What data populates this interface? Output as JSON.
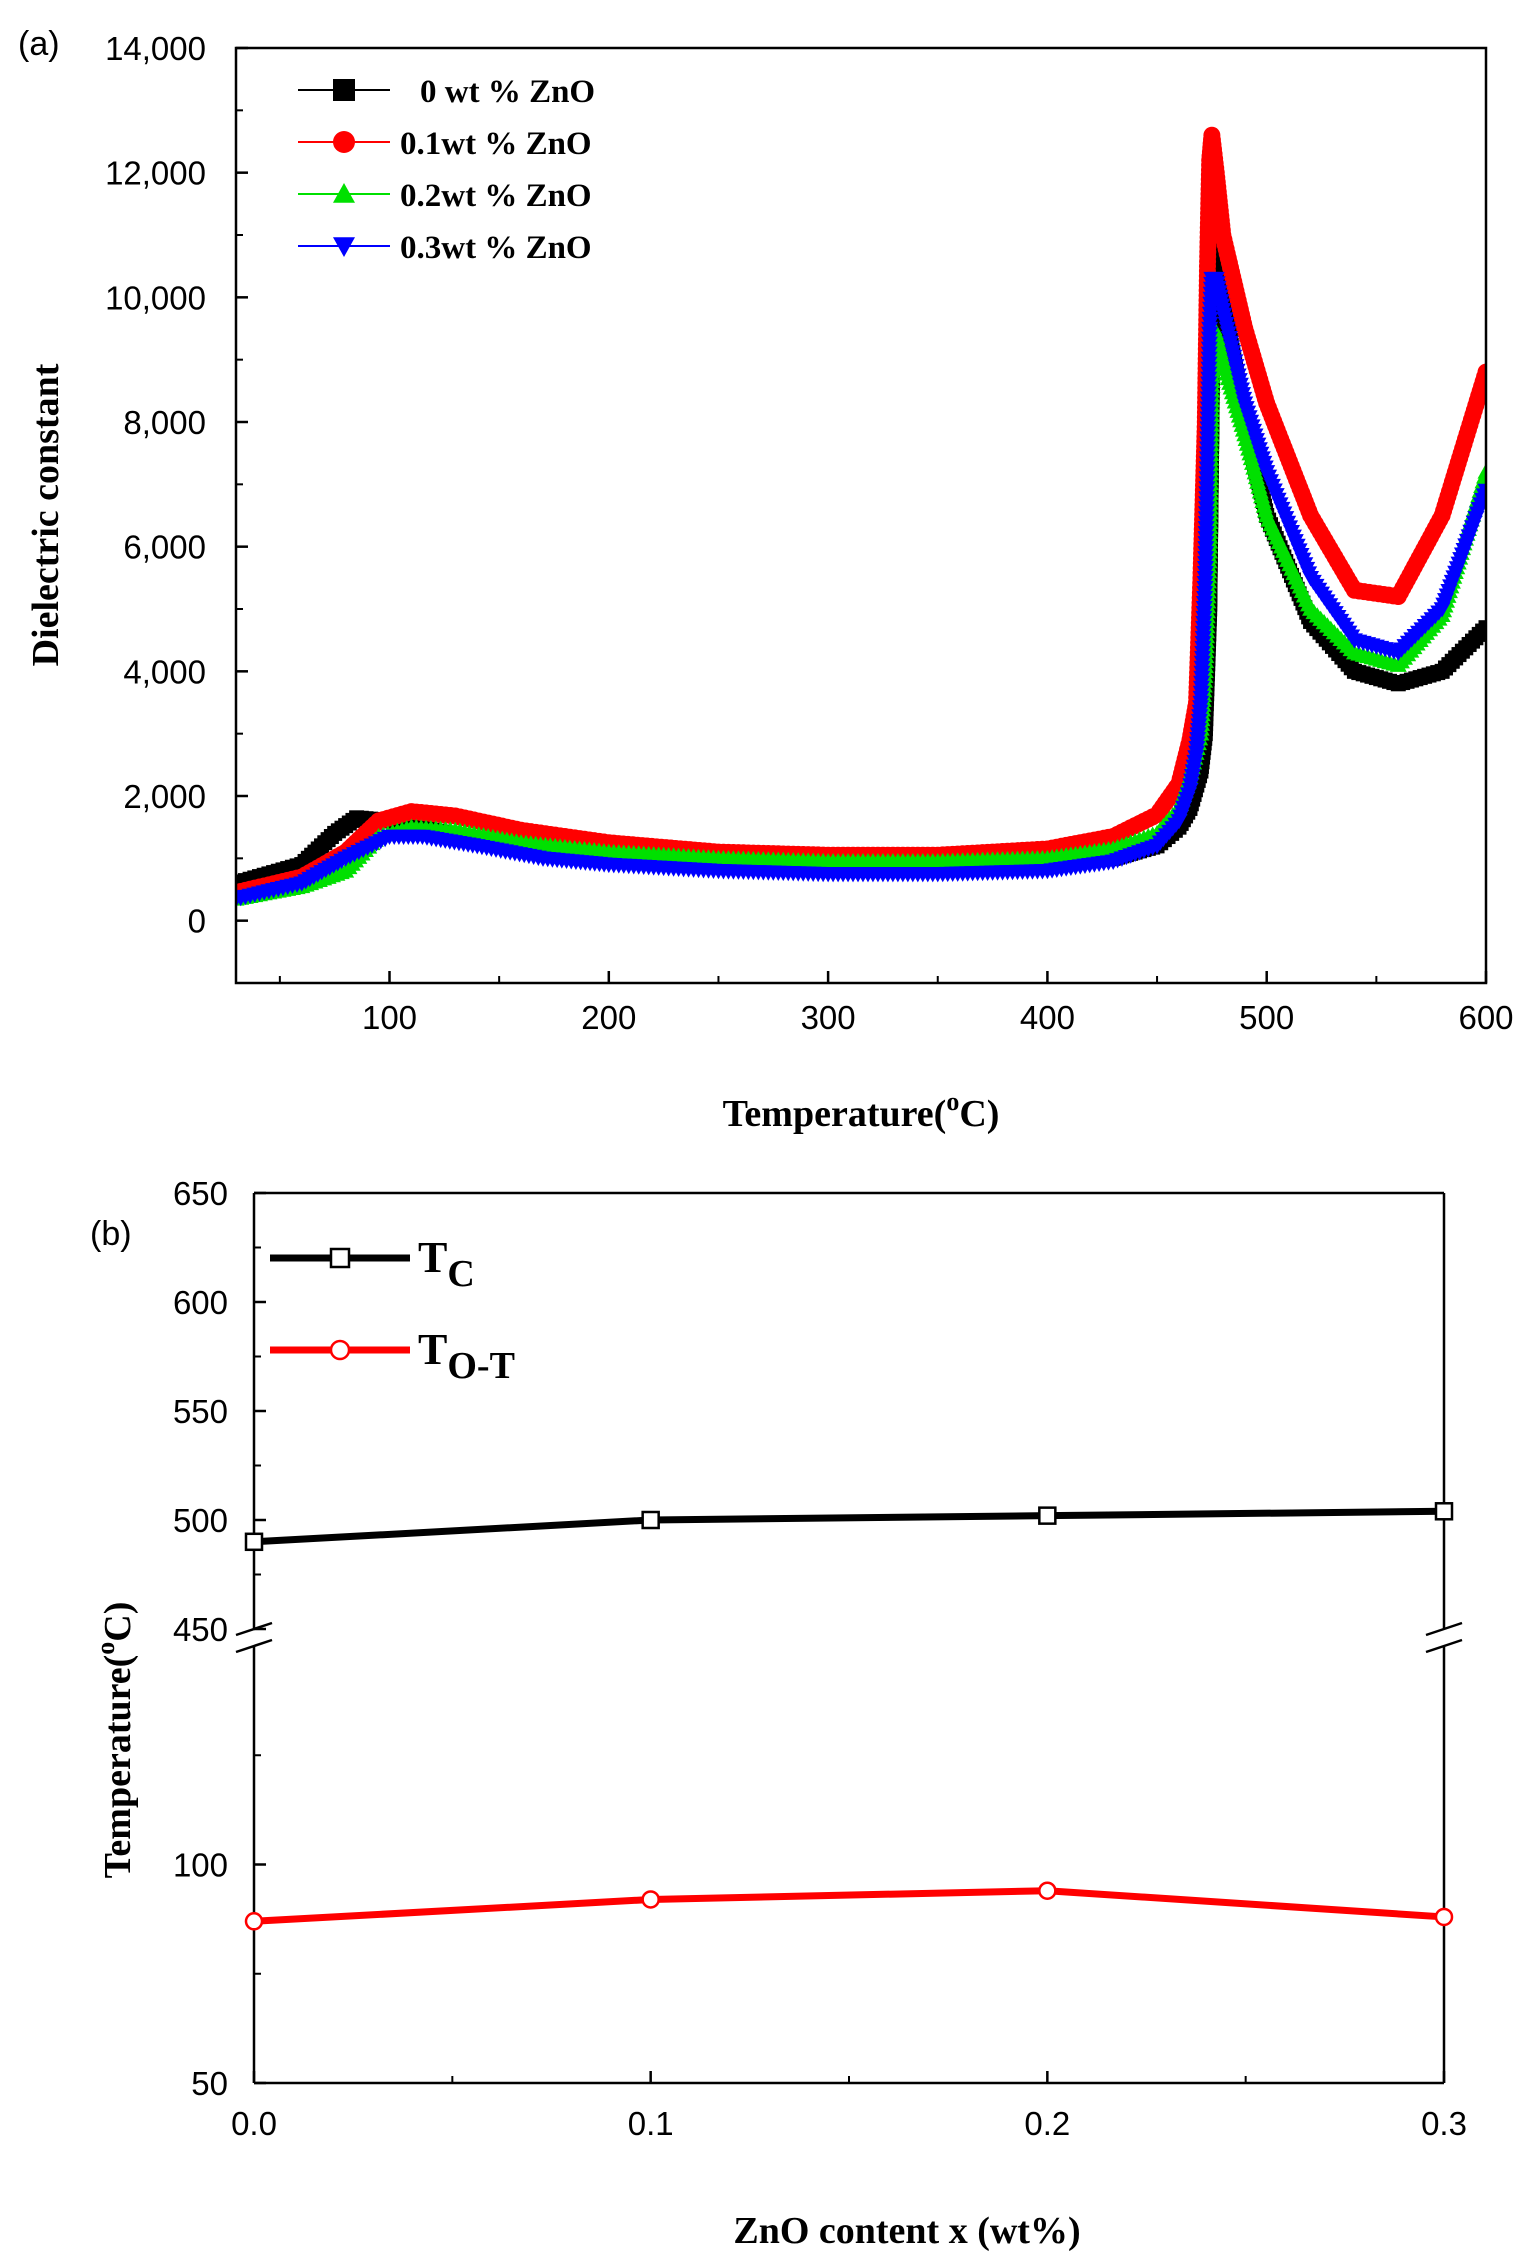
{
  "chart_data": [
    {
      "panel_label": "(a)",
      "type": "scatter",
      "xlabel": "Temperature(",
      "xlabel_sup": "o",
      "xlabel_tail": "C)",
      "ylabel": "Dielectric constant",
      "xlim": [
        30,
        600
      ],
      "ylim": [
        -1000,
        14000
      ],
      "xticks": [
        100,
        200,
        300,
        400,
        500,
        600
      ],
      "xtick_labels": [
        "100",
        "200",
        "300",
        "400",
        "500",
        "600"
      ],
      "yticks": [
        0,
        2000,
        4000,
        6000,
        8000,
        10000,
        12000,
        14000
      ],
      "ytick_labels": [
        "0",
        "2,000",
        "4,000",
        "6,000",
        "8,000",
        "10,000",
        "12,000",
        "14,000"
      ],
      "legend_position": "top-left",
      "series": [
        {
          "name": "0 wt % ZnO",
          "color": "#000000",
          "marker": "square",
          "x": [
            30,
            60,
            75,
            85,
            100,
            120,
            150,
            200,
            250,
            300,
            350,
            400,
            430,
            450,
            460,
            465,
            470,
            472,
            474,
            475,
            476,
            478,
            480,
            490,
            500,
            520,
            540,
            560,
            580,
            600
          ],
          "y": [
            600,
            900,
            1400,
            1650,
            1600,
            1450,
            1250,
            1050,
            950,
            900,
            900,
            920,
            1000,
            1200,
            1500,
            1800,
            2400,
            3000,
            5000,
            8000,
            11500,
            11000,
            10000,
            8000,
            6500,
            4800,
            4000,
            3800,
            4000,
            4700
          ]
        },
        {
          "name": "0.1wt % ZnO",
          "color": "#ff0000",
          "marker": "circle",
          "x": [
            30,
            60,
            80,
            95,
            110,
            130,
            160,
            200,
            250,
            300,
            350,
            400,
            430,
            450,
            460,
            465,
            468,
            470,
            472,
            473,
            474,
            475,
            477,
            480,
            490,
            500,
            520,
            540,
            560,
            580,
            600
          ],
          "y": [
            450,
            700,
            1100,
            1600,
            1750,
            1680,
            1450,
            1250,
            1100,
            1050,
            1050,
            1150,
            1350,
            1700,
            2200,
            2900,
            3500,
            5500,
            8000,
            10500,
            12200,
            12600,
            12000,
            11000,
            9500,
            8300,
            6500,
            5300,
            5200,
            6500,
            8800
          ]
        },
        {
          "name": "0.2wt % ZnO",
          "color": "#00e000",
          "marker": "triangle-up",
          "x": [
            30,
            60,
            80,
            95,
            110,
            130,
            160,
            200,
            250,
            300,
            350,
            400,
            430,
            450,
            460,
            465,
            470,
            472,
            474,
            475,
            476,
            478,
            480,
            490,
            500,
            520,
            540,
            560,
            580,
            600
          ],
          "y": [
            350,
            550,
            800,
            1350,
            1500,
            1450,
            1250,
            1100,
            1000,
            950,
            950,
            1000,
            1150,
            1400,
            1800,
            2300,
            3000,
            4000,
            6000,
            8500,
            9500,
            9300,
            9000,
            7800,
            6500,
            5000,
            4300,
            4100,
            4900,
            7200
          ]
        },
        {
          "name": "0.3wt % ZnO",
          "color": "#0000ff",
          "marker": "triangle-down",
          "x": [
            30,
            60,
            80,
            100,
            115,
            140,
            170,
            200,
            250,
            300,
            350,
            400,
            430,
            450,
            460,
            465,
            468,
            470,
            472,
            473,
            474,
            475,
            477,
            480,
            490,
            500,
            520,
            540,
            560,
            580,
            600
          ],
          "y": [
            350,
            600,
            1000,
            1350,
            1350,
            1200,
            1000,
            900,
            800,
            750,
            750,
            800,
            950,
            1200,
            1600,
            2100,
            2700,
            3500,
            5500,
            7500,
            9500,
            10300,
            10300,
            9800,
            8300,
            7200,
            5500,
            4500,
            4300,
            5000,
            6900
          ]
        }
      ]
    },
    {
      "panel_label": "(b)",
      "type": "line",
      "xlabel": "ZnO content x (wt%)",
      "ylabel": "Temperature(",
      "ylabel_sup": "o",
      "ylabel_tail": "C)",
      "xlim": [
        0.0,
        0.3
      ],
      "xticks": [
        0.0,
        0.1,
        0.2,
        0.3
      ],
      "xtick_labels": [
        "0.0",
        "0.1",
        "0.2",
        "0.3"
      ],
      "broken_axis": true,
      "ylim_upper": [
        450,
        650
      ],
      "yticks_upper": [
        450,
        500,
        550,
        600,
        650
      ],
      "ytick_labels_upper": [
        "450",
        "500",
        "550",
        "600",
        "650"
      ],
      "ylim_lower": [
        50,
        150
      ],
      "yticks_lower": [
        50,
        100
      ],
      "ytick_labels_lower": [
        "50",
        "100"
      ],
      "categories": [
        0.0,
        0.1,
        0.2,
        0.3
      ],
      "legend_position": "top-left",
      "series": [
        {
          "name": "T",
          "name_sub": "C",
          "color": "#000000",
          "marker": "square-open",
          "values": [
            490,
            500,
            502,
            504
          ]
        },
        {
          "name": "T",
          "name_sub": "O-T",
          "color": "#ff0000",
          "marker": "circle-open",
          "values": [
            87,
            92,
            94,
            88
          ]
        }
      ]
    }
  ]
}
